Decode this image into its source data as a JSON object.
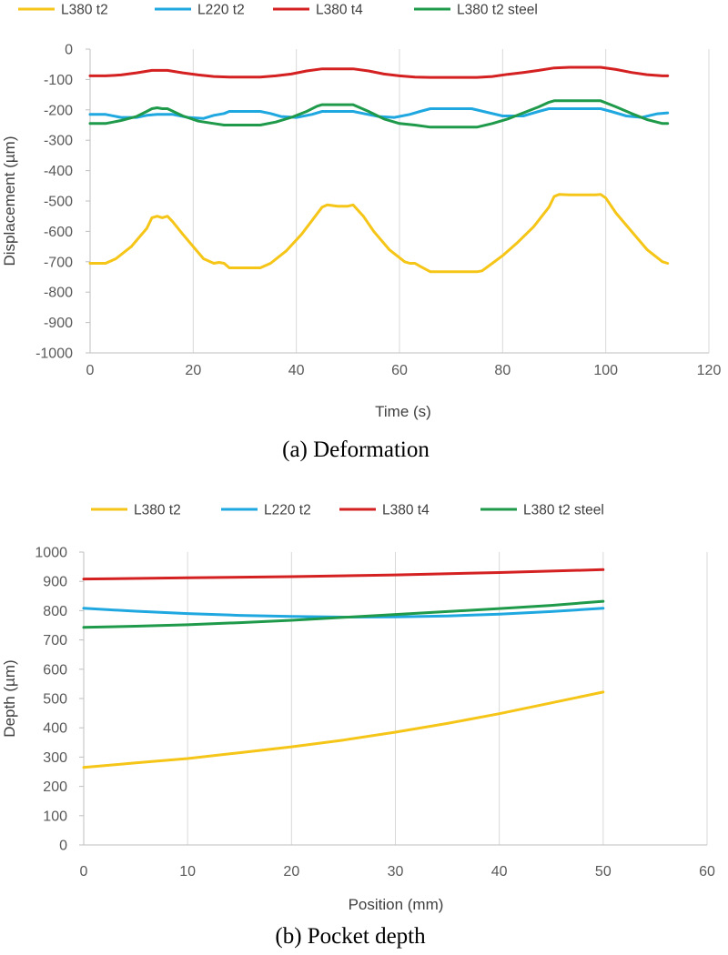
{
  "chart_data": [
    {
      "type": "line",
      "caption": "(a) Deformation",
      "xlabel": "Time (s)",
      "ylabel": "Displacement (µm)",
      "xlim": [
        0,
        120
      ],
      "ylim": [
        -1000,
        0
      ],
      "xticks": [
        0,
        20,
        40,
        60,
        80,
        100,
        120
      ],
      "yticks": [
        0,
        -100,
        -200,
        -300,
        -400,
        -500,
        -600,
        -700,
        -800,
        -900,
        -1000
      ],
      "grid": "vertical",
      "legend": "top",
      "series": [
        {
          "name": "L380 t2",
          "color": "#f5c518",
          "x": [
            0,
            3,
            5,
            8,
            11,
            12,
            13,
            14,
            15,
            16,
            18,
            20,
            22,
            24,
            25,
            26,
            27,
            30,
            33,
            35,
            38,
            41,
            43,
            45,
            46,
            48,
            50,
            51,
            53,
            55,
            58,
            61,
            62,
            63,
            64,
            66,
            70,
            75,
            76,
            78,
            80,
            83,
            86,
            89,
            90,
            91,
            93,
            96,
            98,
            99,
            100,
            102,
            105,
            108,
            111,
            112
          ],
          "y": [
            -705,
            -705,
            -690,
            -650,
            -590,
            -555,
            -550,
            -555,
            -550,
            -568,
            -610,
            -650,
            -690,
            -705,
            -702,
            -705,
            -720,
            -720,
            -720,
            -705,
            -665,
            -610,
            -565,
            -520,
            -513,
            -517,
            -517,
            -513,
            -550,
            -600,
            -660,
            -700,
            -705,
            -705,
            -715,
            -733,
            -733,
            -733,
            -730,
            -705,
            -680,
            -635,
            -585,
            -520,
            -485,
            -478,
            -480,
            -480,
            -480,
            -478,
            -490,
            -540,
            -600,
            -660,
            -700,
            -705
          ]
        },
        {
          "name": "L220 t2",
          "color": "#1fa7e0",
          "x": [
            0,
            3,
            6,
            9,
            11,
            13,
            16,
            19,
            22,
            24,
            26,
            27,
            30,
            33,
            35,
            37,
            40,
            43,
            45,
            48,
            51,
            53,
            56,
            59,
            62,
            64,
            66,
            70,
            74,
            77,
            80,
            84,
            87,
            89,
            91,
            95,
            99,
            101,
            104,
            107,
            110,
            112
          ],
          "y": [
            -215,
            -215,
            -225,
            -225,
            -218,
            -215,
            -215,
            -225,
            -228,
            -218,
            -212,
            -205,
            -205,
            -205,
            -212,
            -222,
            -225,
            -215,
            -205,
            -205,
            -205,
            -212,
            -222,
            -225,
            -215,
            -205,
            -196,
            -196,
            -196,
            -208,
            -220,
            -220,
            -205,
            -196,
            -196,
            -196,
            -196,
            -205,
            -220,
            -225,
            -213,
            -210
          ]
        },
        {
          "name": "L380 t4",
          "color": "#d42020",
          "x": [
            0,
            3,
            6,
            9,
            12,
            15,
            18,
            21,
            24,
            27,
            30,
            33,
            36,
            39,
            42,
            45,
            48,
            51,
            54,
            57,
            60,
            63,
            66,
            69,
            72,
            75,
            78,
            81,
            84,
            87,
            90,
            93,
            96,
            99,
            102,
            105,
            108,
            111,
            112
          ],
          "y": [
            -88,
            -88,
            -85,
            -78,
            -70,
            -70,
            -78,
            -85,
            -90,
            -92,
            -92,
            -92,
            -88,
            -82,
            -72,
            -65,
            -65,
            -65,
            -72,
            -82,
            -88,
            -92,
            -93,
            -93,
            -93,
            -93,
            -90,
            -83,
            -77,
            -70,
            -62,
            -60,
            -60,
            -60,
            -67,
            -77,
            -84,
            -88,
            -88
          ]
        },
        {
          "name": "L380 t2 steel",
          "color": "#1e9a4a",
          "x": [
            0,
            3,
            6,
            9,
            11,
            12,
            13,
            14,
            15,
            18,
            21,
            24,
            26,
            28,
            30,
            33,
            36,
            39,
            42,
            44,
            45,
            48,
            51,
            54,
            57,
            60,
            63,
            66,
            70,
            75,
            78,
            81,
            84,
            87,
            89,
            90,
            91,
            96,
            99,
            102,
            105,
            108,
            111,
            112
          ],
          "y": [
            -245,
            -245,
            -235,
            -222,
            -205,
            -196,
            -193,
            -196,
            -196,
            -220,
            -237,
            -245,
            -250,
            -250,
            -250,
            -250,
            -240,
            -225,
            -205,
            -188,
            -183,
            -183,
            -183,
            -205,
            -230,
            -245,
            -250,
            -257,
            -257,
            -257,
            -245,
            -230,
            -210,
            -190,
            -175,
            -170,
            -170,
            -170,
            -170,
            -190,
            -212,
            -232,
            -245,
            -245
          ]
        }
      ]
    },
    {
      "type": "line",
      "caption": "(b) Pocket depth",
      "xlabel": "Position (mm)",
      "ylabel": "Depth (µm)",
      "xlim": [
        0,
        60
      ],
      "ylim": [
        0,
        1000
      ],
      "xticks": [
        0,
        10,
        20,
        30,
        40,
        50,
        60
      ],
      "yticks": [
        0,
        100,
        200,
        300,
        400,
        500,
        600,
        700,
        800,
        900,
        1000
      ],
      "grid": "vertical",
      "legend": "top",
      "series": [
        {
          "name": "L380 t2",
          "color": "#f5c518",
          "x": [
            0,
            5,
            10,
            15,
            20,
            25,
            30,
            35,
            40,
            45,
            50
          ],
          "y": [
            265,
            280,
            295,
            315,
            335,
            358,
            385,
            415,
            448,
            485,
            522
          ]
        },
        {
          "name": "L220 t2",
          "color": "#1fa7e0",
          "x": [
            0,
            5,
            10,
            15,
            20,
            25,
            30,
            35,
            40,
            45,
            50
          ],
          "y": [
            808,
            798,
            790,
            784,
            780,
            778,
            779,
            782,
            788,
            797,
            808
          ]
        },
        {
          "name": "L380 t4",
          "color": "#d42020",
          "x": [
            0,
            10,
            20,
            30,
            40,
            50
          ],
          "y": [
            908,
            912,
            916,
            922,
            930,
            940
          ]
        },
        {
          "name": "L380 t2 steel",
          "color": "#1e9a4a",
          "x": [
            0,
            5,
            10,
            15,
            20,
            25,
            30,
            35,
            40,
            45,
            50
          ],
          "y": [
            743,
            747,
            752,
            759,
            767,
            777,
            787,
            797,
            807,
            818,
            832
          ]
        }
      ]
    }
  ]
}
